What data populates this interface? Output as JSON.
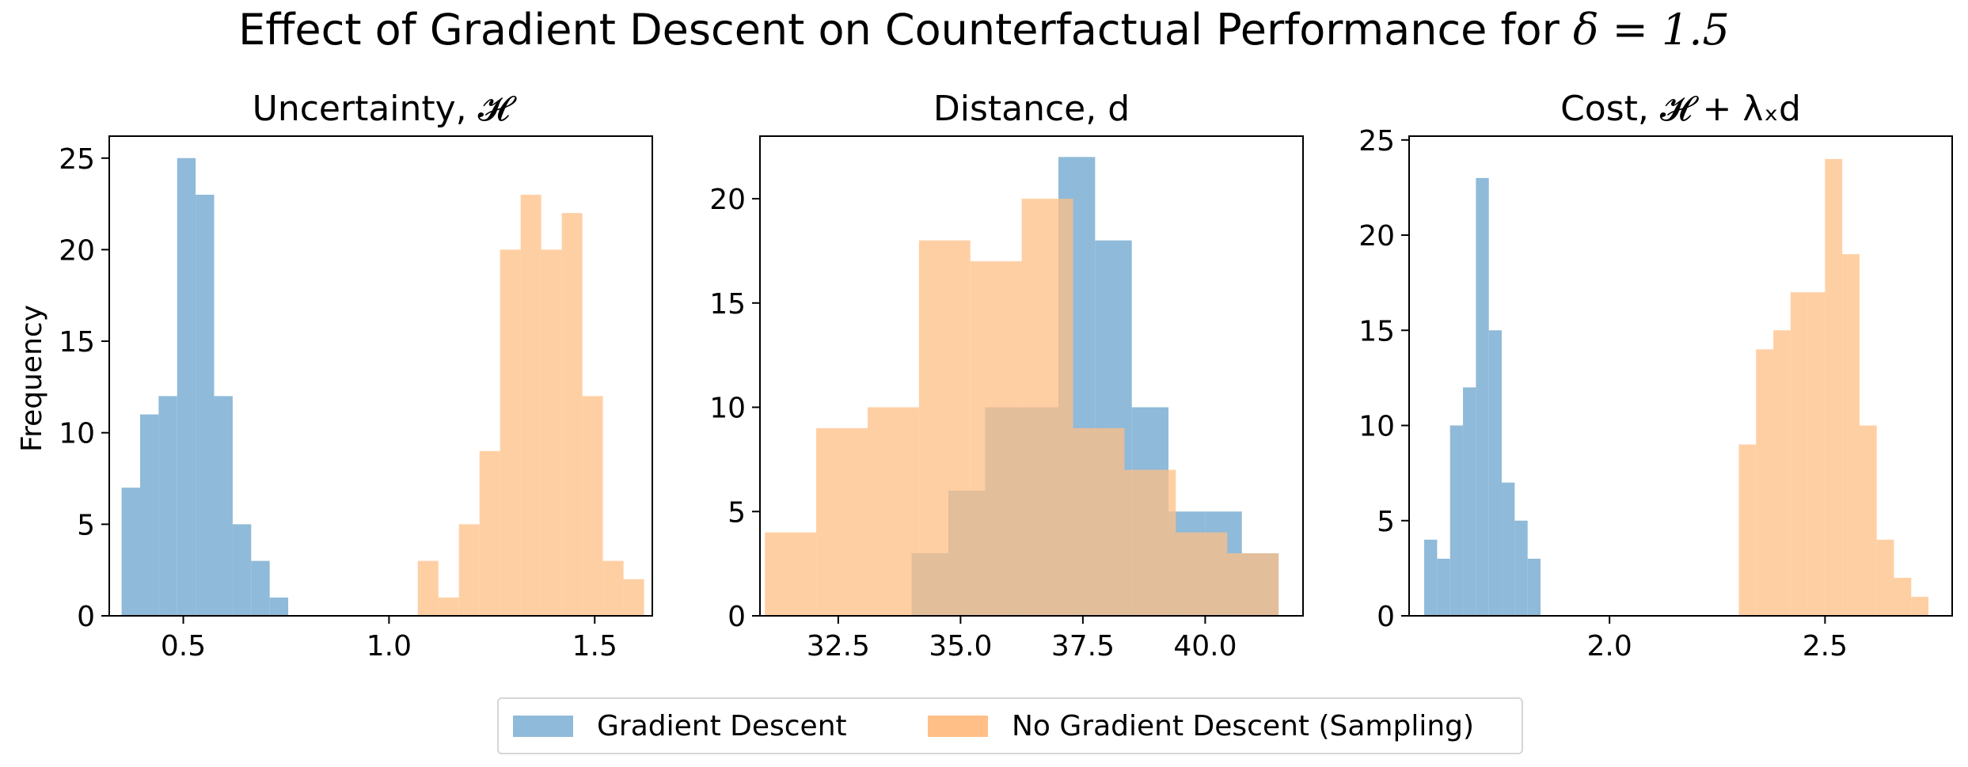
{
  "figure": {
    "title": "Effect of Gradient Descent on Counterfactual Performance for ",
    "title_math": "δ = 1.5",
    "ylabel": "Frequency",
    "colors": {
      "gradient_descent": "#8fbad9",
      "sampling": "#ffbf86",
      "overlap": "#c6a07e"
    }
  },
  "legend": {
    "items": [
      {
        "label": "Gradient Descent",
        "color": "#8fbad9"
      },
      {
        "label": "No Gradient Descent (Sampling)",
        "color": "#ffbf86"
      }
    ]
  },
  "chart_data": [
    {
      "type": "bar",
      "title": "Uncertainty, 𝓗",
      "xlim": [
        0.32,
        1.64
      ],
      "ylim": [
        0,
        26.2
      ],
      "xticks": [
        0.5,
        1.0,
        1.5
      ],
      "xtick_labels": [
        "0.5",
        "1.0",
        "1.5"
      ],
      "yticks": [
        0,
        5,
        10,
        15,
        20,
        25
      ],
      "series": [
        {
          "name": "Gradient Descent",
          "bin_edges": [
            0.35,
            0.395,
            0.44,
            0.485,
            0.53,
            0.575,
            0.62,
            0.665,
            0.71,
            0.755
          ],
          "counts": [
            7,
            11,
            12,
            25,
            23,
            12,
            5,
            3,
            1
          ]
        },
        {
          "name": "No Gradient Descent (Sampling)",
          "bin_edges": [
            1.07,
            1.12,
            1.17,
            1.22,
            1.27,
            1.32,
            1.37,
            1.42,
            1.47,
            1.52,
            1.57,
            1.62
          ],
          "counts": [
            3,
            1,
            5,
            9,
            20,
            23,
            20,
            22,
            12,
            3,
            2
          ]
        }
      ]
    },
    {
      "type": "bar",
      "title": "Distance, d",
      "xlim": [
        30.9,
        42.0
      ],
      "ylim": [
        0,
        23.0
      ],
      "xticks": [
        32.5,
        35.0,
        37.5,
        40.0
      ],
      "xtick_labels": [
        "32.5",
        "35.0",
        "37.5",
        "40.0"
      ],
      "yticks": [
        0,
        5,
        10,
        15,
        20
      ],
      "series": [
        {
          "name": "Gradient Descent",
          "bin_edges": [
            34.0,
            34.75,
            35.5,
            36.25,
            37.0,
            37.75,
            38.5,
            39.25,
            40.0,
            40.75,
            41.5,
            42.25
          ],
          "counts": [
            3,
            6,
            10,
            10,
            22,
            18,
            10,
            5,
            5,
            3,
            0
          ]
        },
        {
          "name": "No Gradient Descent (Sampling)",
          "bin_edges": [
            31.0,
            32.05,
            33.1,
            34.15,
            35.2,
            36.25,
            37.3,
            38.35,
            39.4,
            40.45,
            41.5
          ],
          "counts": [
            4,
            9,
            10,
            18,
            17,
            20,
            9,
            7,
            4,
            3
          ]
        }
      ]
    },
    {
      "type": "bar",
      "title": "Cost, 𝓗 + λₓd",
      "xlim": [
        1.535,
        2.795
      ],
      "ylim": [
        0,
        25.2
      ],
      "xticks": [
        2.0,
        2.5
      ],
      "xtick_labels": [
        "2.0",
        "2.5"
      ],
      "yticks": [
        0,
        5,
        10,
        15,
        20,
        25
      ],
      "series": [
        {
          "name": "Gradient Descent",
          "bin_edges": [
            1.57,
            1.6,
            1.63,
            1.66,
            1.69,
            1.72,
            1.75,
            1.78,
            1.81,
            1.84
          ],
          "counts": [
            4,
            3,
            10,
            12,
            23,
            15,
            7,
            5,
            3
          ]
        },
        {
          "name": "No Gradient Descent (Sampling)",
          "bin_edges": [
            2.26,
            2.3,
            2.34,
            2.38,
            2.42,
            2.46,
            2.5,
            2.54,
            2.58,
            2.62,
            2.66,
            2.7,
            2.74,
            2.78
          ],
          "counts": [
            0,
            9,
            14,
            15,
            17,
            17,
            24,
            19,
            10,
            4,
            2,
            1,
            0
          ]
        }
      ]
    }
  ]
}
